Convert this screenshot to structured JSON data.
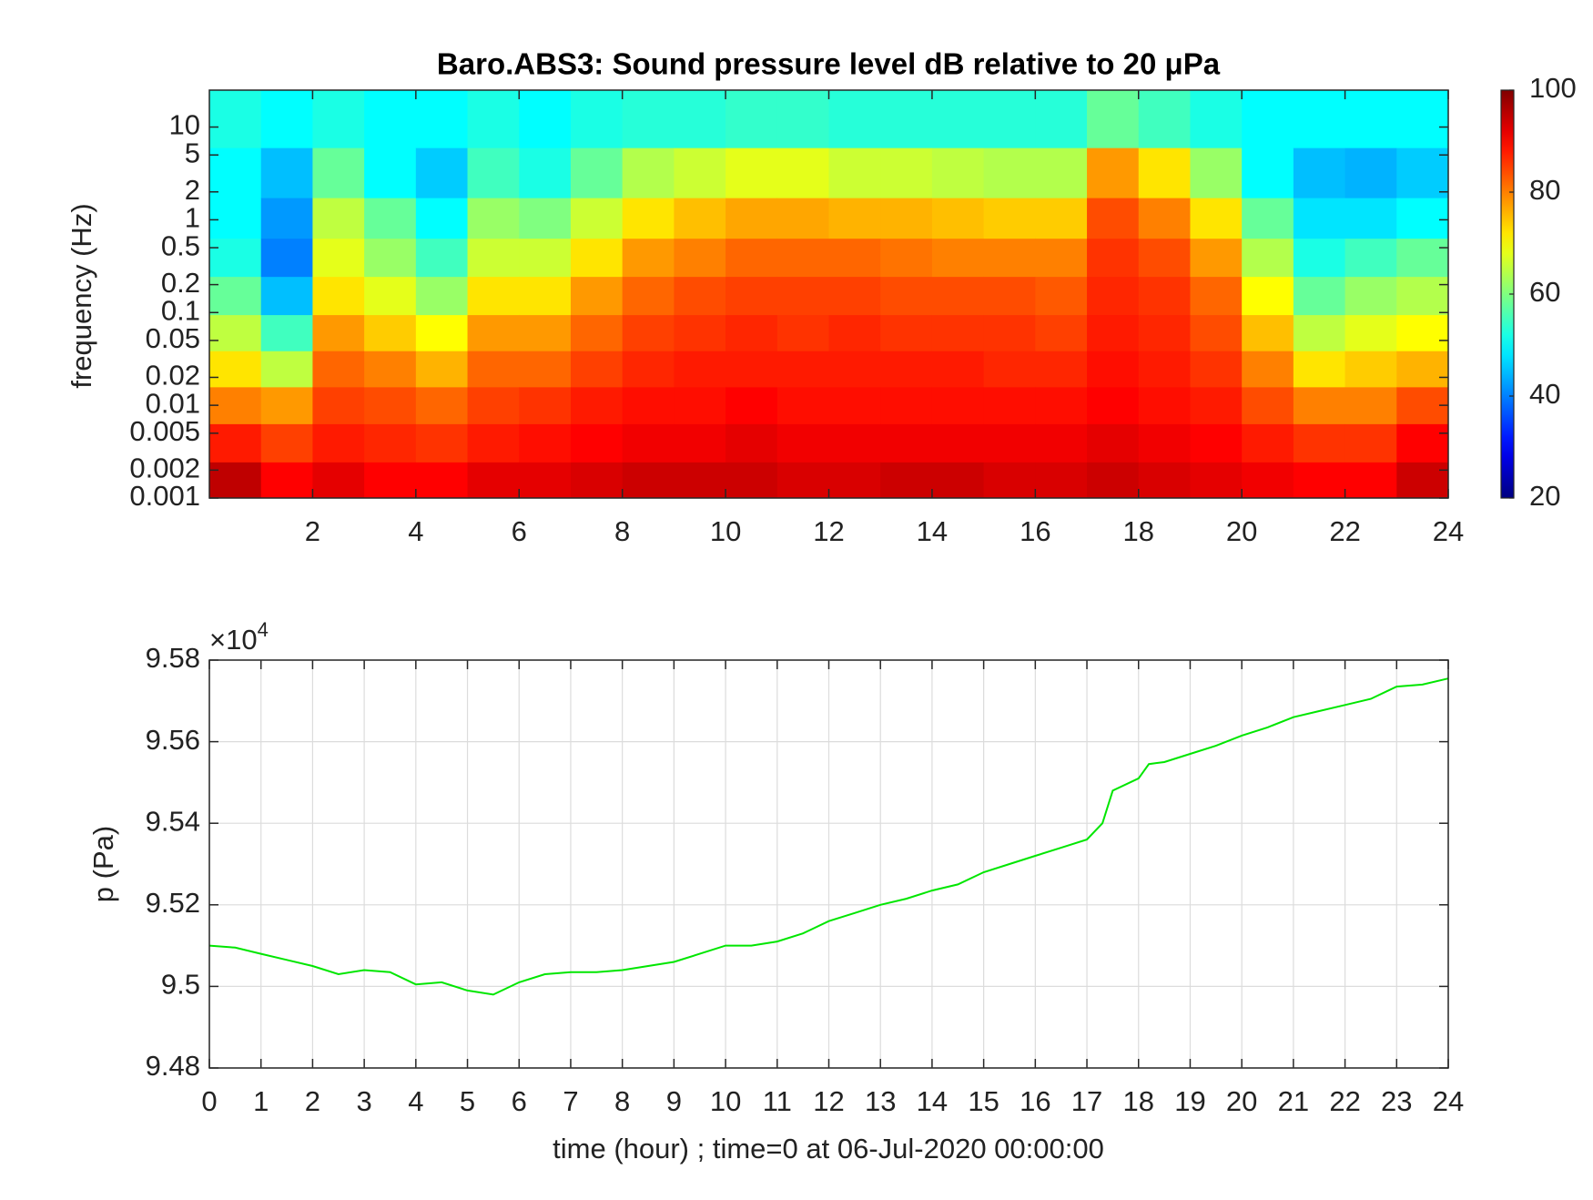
{
  "chart_data": [
    {
      "type": "heatmap",
      "title": "Baro.ABS3: Sound pressure level dB relative to 20 μPa",
      "y_label": "frequency (Hz)",
      "yscale": "log",
      "colormap": "jet",
      "x": [
        0.5,
        1.5,
        2.5,
        3.5,
        4.5,
        5.5,
        6.5,
        7.5,
        8.5,
        9.5,
        10.5,
        11.5,
        12.5,
        13.5,
        14.5,
        15.5,
        16.5,
        17.5,
        18.5,
        19.5,
        20.5,
        21.5,
        22.5,
        23.5
      ],
      "y": [
        0.0015,
        0.004,
        0.01,
        0.025,
        0.06,
        0.15,
        0.4,
        1,
        3,
        12
      ],
      "z": [
        [
          95,
          88,
          80,
          72,
          65,
          58,
          52,
          50,
          50,
          52
        ],
        [
          90,
          85,
          78,
          65,
          55,
          45,
          40,
          42,
          45,
          50
        ],
        [
          92,
          88,
          85,
          82,
          78,
          72,
          68,
          65,
          58,
          52
        ],
        [
          90,
          87,
          84,
          80,
          74,
          68,
          62,
          58,
          50,
          50
        ],
        [
          90,
          86,
          82,
          76,
          70,
          62,
          55,
          50,
          46,
          50
        ],
        [
          92,
          88,
          85,
          82,
          78,
          72,
          66,
          62,
          55,
          52
        ],
        [
          92,
          89,
          86,
          82,
          78,
          72,
          66,
          60,
          52,
          50
        ],
        [
          93,
          90,
          88,
          85,
          82,
          78,
          72,
          66,
          58,
          52
        ],
        [
          94,
          91,
          89,
          87,
          85,
          82,
          78,
          72,
          64,
          53
        ],
        [
          94,
          91,
          89,
          88,
          86,
          84,
          80,
          75,
          66,
          53
        ],
        [
          94,
          92,
          90,
          88,
          87,
          85,
          82,
          77,
          68,
          54
        ],
        [
          93,
          91,
          89,
          88,
          86,
          85,
          82,
          77,
          68,
          54
        ],
        [
          93,
          91,
          89,
          88,
          87,
          85,
          82,
          76,
          66,
          53
        ],
        [
          94,
          91,
          89,
          88,
          86,
          84,
          81,
          76,
          66,
          53
        ],
        [
          94,
          91,
          89,
          88,
          86,
          84,
          80,
          75,
          65,
          53
        ],
        [
          93,
          91,
          89,
          87,
          86,
          84,
          80,
          74,
          64,
          53
        ],
        [
          93,
          91,
          89,
          87,
          85,
          83,
          80,
          74,
          64,
          53
        ],
        [
          94,
          92,
          90,
          89,
          88,
          87,
          86,
          84,
          78,
          58
        ],
        [
          93,
          91,
          89,
          88,
          87,
          86,
          84,
          80,
          72,
          55
        ],
        [
          92,
          90,
          88,
          86,
          84,
          82,
          78,
          72,
          62,
          52
        ],
        [
          91,
          88,
          84,
          80,
          75,
          70,
          64,
          58,
          50,
          50
        ],
        [
          90,
          86,
          80,
          72,
          65,
          58,
          52,
          48,
          45,
          50
        ],
        [
          90,
          86,
          80,
          74,
          68,
          62,
          55,
          48,
          44,
          50
        ],
        [
          94,
          90,
          84,
          76,
          70,
          64,
          58,
          50,
          46,
          50
        ]
      ],
      "xlim": [
        0,
        24
      ],
      "xticks": [
        2,
        4,
        6,
        8,
        10,
        12,
        14,
        16,
        18,
        20,
        22,
        24
      ],
      "ylim": [
        0.001,
        25
      ],
      "yticks": [
        0.001,
        0.002,
        0.005,
        0.01,
        0.02,
        0.05,
        0.1,
        0.2,
        0.5,
        1,
        2,
        5,
        10
      ],
      "clim": [
        20,
        100
      ],
      "cticks": [
        20,
        40,
        60,
        80,
        100
      ]
    },
    {
      "type": "line",
      "x_label": "time (hour) ; time=0 at 06-Jul-2020 00:00:00",
      "y_label": "p (Pa)",
      "y_multiplier": {
        "base": "×10",
        "exponent": "4"
      },
      "color": "#00e600",
      "grid": true,
      "x": [
        0,
        0.5,
        1,
        1.5,
        2,
        2.5,
        3,
        3.5,
        4,
        4.5,
        5,
        5.5,
        6,
        6.5,
        7,
        7.5,
        8,
        8.5,
        9,
        9.5,
        10,
        10.5,
        11,
        11.5,
        12,
        12.5,
        13,
        13.5,
        14,
        14.5,
        15,
        15.5,
        16,
        16.5,
        17,
        17.3,
        17.5,
        18,
        18.2,
        18.5,
        19,
        19.5,
        20,
        20.5,
        21,
        21.5,
        22,
        22.5,
        23,
        23.5,
        24
      ],
      "values": [
        95100,
        95095,
        95080,
        95065,
        95050,
        95030,
        95040,
        95035,
        95005,
        95010,
        94990,
        94980,
        95010,
        95030,
        95035,
        95035,
        95040,
        95050,
        95060,
        95080,
        95100,
        95100,
        95110,
        95130,
        95160,
        95180,
        95200,
        95215,
        95235,
        95250,
        95280,
        95300,
        95320,
        95340,
        95360,
        95400,
        95480,
        95510,
        95545,
        95550,
        95570,
        95590,
        95615,
        95635,
        95660,
        95675,
        95690,
        95705,
        95735,
        95740,
        95755
      ],
      "xlim": [
        0,
        24
      ],
      "xticks": [
        0,
        1,
        2,
        3,
        4,
        5,
        6,
        7,
        8,
        9,
        10,
        11,
        12,
        13,
        14,
        15,
        16,
        17,
        18,
        19,
        20,
        21,
        22,
        23,
        24
      ],
      "ylim": [
        94800,
        95800
      ],
      "yticks": [
        {
          "value": 94800,
          "label": "9.48"
        },
        {
          "value": 95000,
          "label": "9.5"
        },
        {
          "value": 95200,
          "label": "9.52"
        },
        {
          "value": 95400,
          "label": "9.54"
        },
        {
          "value": 95600,
          "label": "9.56"
        },
        {
          "value": 95800,
          "label": "9.58"
        }
      ]
    }
  ]
}
